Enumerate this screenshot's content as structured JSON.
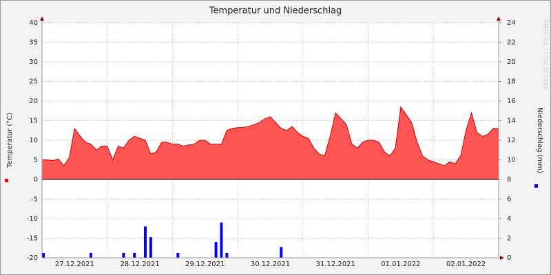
{
  "chart_data": {
    "type": "area_bar",
    "title": "Temperatur und Niederschlag",
    "ylabel": "Temperatur (°C)",
    "y2label": "Niederschlag (mm)",
    "watermark": "RRDTOOL / TOBI OETIKER",
    "ylim": [
      -20,
      40
    ],
    "yticks": [
      -20,
      -15,
      -10,
      -5,
      0,
      5,
      10,
      15,
      20,
      25,
      30,
      35,
      40
    ],
    "y2lim": [
      0,
      24
    ],
    "y2ticks": [
      0,
      2,
      4,
      6,
      8,
      10,
      12,
      14,
      16,
      18,
      20,
      22,
      24
    ],
    "grid": true,
    "categories": [
      null,
      null,
      null,
      null,
      null,
      null,
      "27.12.2021",
      null,
      null,
      null,
      null,
      null,
      null,
      null,
      null,
      null,
      null,
      null,
      "28.12.2021",
      null,
      null,
      null,
      null,
      null,
      null,
      null,
      null,
      null,
      null,
      null,
      "29.12.2021",
      null,
      null,
      null,
      null,
      null,
      null,
      null,
      null,
      null,
      null,
      null,
      "30.12.2021",
      null,
      null,
      null,
      null,
      null,
      null,
      null,
      null,
      null,
      null,
      null,
      "31.12.2021",
      null,
      null,
      null,
      null,
      null,
      null,
      null,
      null,
      null,
      null,
      null,
      "01.01.2022",
      null,
      null,
      null,
      null,
      null,
      null,
      null,
      null,
      null,
      null,
      null,
      "02.01.2022",
      null,
      null,
      null,
      null,
      null,
      null
    ],
    "series": [
      {
        "type": "area",
        "color": "#ff5555",
        "values": [
          5,
          5,
          4.8,
          5.2,
          3.5,
          5.5,
          13,
          11,
          9.5,
          9,
          7.5,
          8.5,
          8.5,
          5,
          8.5,
          8,
          10,
          11,
          10.5,
          10,
          6.5,
          7,
          9.5,
          9.5,
          9,
          9,
          8.5,
          8.8,
          9,
          10,
          10,
          9,
          9,
          9,
          12.5,
          13,
          13.2,
          13.3,
          13.5,
          14,
          14.5,
          15.5,
          16,
          14.5,
          13,
          12.5,
          13.5,
          12,
          11,
          10.5,
          8,
          6.5,
          6,
          11,
          17,
          15.5,
          14,
          9,
          8,
          9.5,
          10,
          10,
          9.5,
          7,
          6,
          8,
          18.5,
          16.5,
          14.5,
          9.5,
          6,
          5,
          4.5,
          4,
          3.5,
          4.5,
          4,
          6,
          12.5,
          17,
          12,
          11,
          11.5,
          13,
          13
        ]
      },
      {
        "type": "bar",
        "axis": "y2",
        "color": "#0000ff",
        "values": [
          0.5,
          0,
          0,
          0,
          0,
          0,
          0,
          0,
          0,
          0.5,
          0,
          0,
          0,
          0,
          0,
          0.5,
          0,
          0.5,
          0,
          3.2,
          2.1,
          0,
          0,
          0,
          0,
          0.5,
          0,
          0,
          0,
          0,
          0,
          0,
          1.6,
          3.6,
          0.5,
          0,
          0,
          0,
          0,
          0,
          0,
          0,
          0,
          0,
          1.1,
          0,
          0,
          0,
          0,
          0,
          0,
          0,
          0,
          0,
          0,
          0,
          0,
          0,
          0,
          0,
          0,
          0,
          0,
          0,
          0,
          0,
          0,
          0,
          0,
          0,
          0,
          0,
          0,
          0,
          0,
          0,
          0,
          0,
          0,
          0,
          0,
          0,
          0,
          0,
          0
        ]
      }
    ]
  }
}
